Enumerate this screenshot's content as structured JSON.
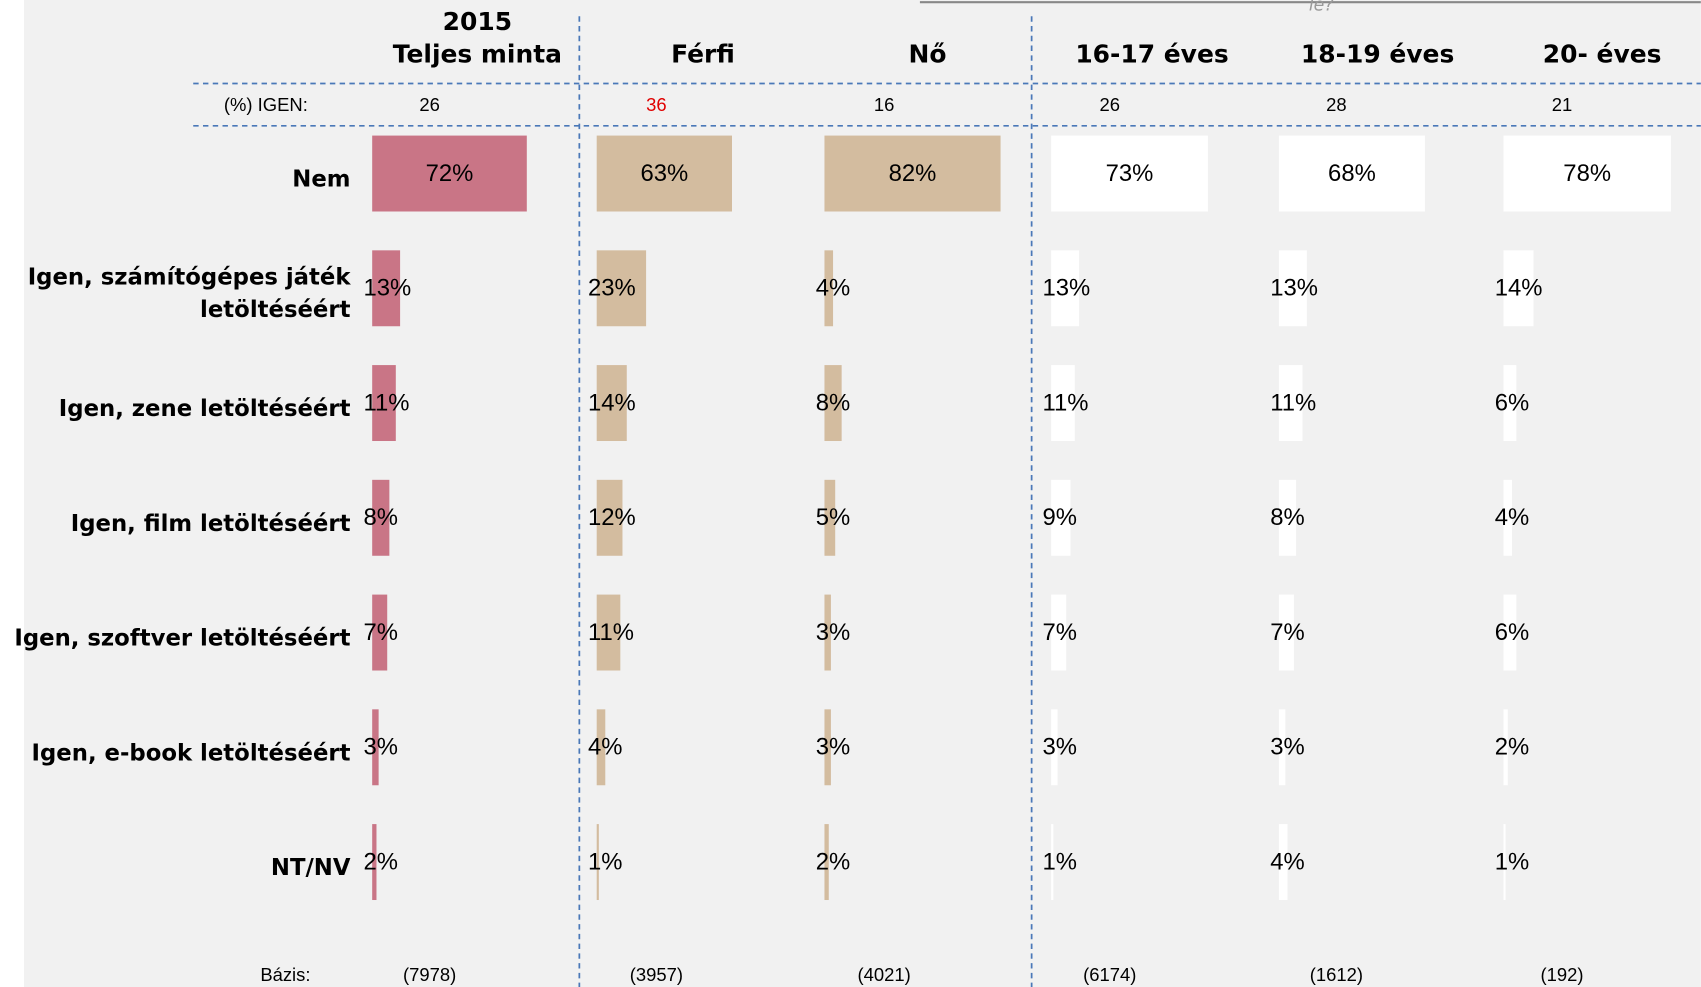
{
  "chart_data": {
    "type": "bar",
    "header_fragment": "le?",
    "year_label": "2015",
    "igen_label": "(%) IGEN:",
    "base_label": "Bázis:",
    "categories": [
      "Nem",
      "Igen, számítógépes játék letöltéséért",
      "Igen, zene letöltéséért",
      "Igen, film letöltéséért",
      "Igen, szoftver letöltéséért",
      "Igen, e-book letöltéséért",
      "NT/NV"
    ],
    "series": [
      {
        "name": "Teljes minta",
        "color": "#c97586",
        "igen": 26,
        "igen_color": "#000000",
        "base": "(7978)",
        "values": [
          72,
          13,
          11,
          8,
          7,
          3,
          2
        ],
        "value_labels": [
          "72%",
          "13%",
          "11%",
          "8%",
          "7%",
          "3%",
          "2%"
        ]
      },
      {
        "name": "Férfi",
        "color": "#d3bc9f",
        "igen": 36,
        "igen_color": "#e00000",
        "base": "(3957)",
        "values": [
          63,
          23,
          14,
          12,
          11,
          4,
          1
        ],
        "value_labels": [
          "63%",
          "23%",
          "14%",
          "12%",
          "11%",
          "4%",
          "1%"
        ]
      },
      {
        "name": "Nő",
        "color": "#d3bc9f",
        "igen": 16,
        "igen_color": "#000000",
        "base": "(4021)",
        "values": [
          82,
          4,
          8,
          5,
          3,
          3,
          2
        ],
        "value_labels": [
          "82%",
          "4%",
          "8%",
          "5%",
          "3%",
          "3%",
          "2%"
        ]
      },
      {
        "name": "16-17 éves",
        "color": "#ffffff",
        "igen": 26,
        "igen_color": "#000000",
        "base": "(6174)",
        "values": [
          73,
          13,
          11,
          9,
          7,
          3,
          1
        ],
        "value_labels": [
          "73%",
          "13%",
          "11%",
          "9%",
          "7%",
          "3%",
          "1%"
        ]
      },
      {
        "name": "18-19 éves",
        "color": "#ffffff",
        "igen": 28,
        "igen_color": "#000000",
        "base": "(1612)",
        "values": [
          68,
          13,
          11,
          8,
          7,
          3,
          4
        ],
        "value_labels": [
          "68%",
          "13%",
          "11%",
          "8%",
          "7%",
          "3%",
          "4%"
        ]
      },
      {
        "name": "20- éves",
        "color": "#ffffff",
        "igen": 21,
        "igen_color": "#000000",
        "base": "(192)",
        "values": [
          78,
          14,
          6,
          4,
          6,
          2,
          1
        ],
        "value_labels": [
          "78%",
          "14%",
          "6%",
          "4%",
          "6%",
          "2%",
          "1%"
        ]
      }
    ]
  }
}
